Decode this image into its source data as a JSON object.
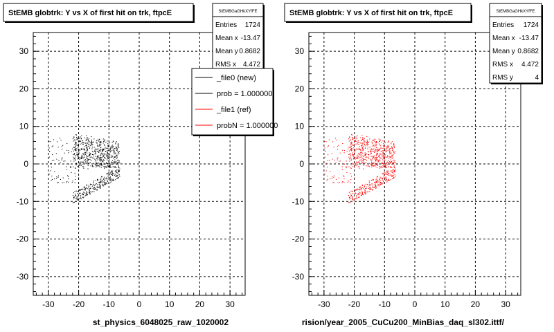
{
  "colors": {
    "new": "#000000",
    "ref": "#ff0000",
    "frame": "#000000",
    "grid": "#000000",
    "background": "#ffffff"
  },
  "chart_data": [
    {
      "type": "scatter",
      "title": "StEMB globtrk: Y vs X of first hit on trk, ftpcE",
      "xlabel": "st_physics_6048025_raw_1020002",
      "ylabel": "",
      "xlim": [
        -35,
        35
      ],
      "ylim": [
        -35,
        35
      ],
      "xticks": [
        -30,
        -20,
        -10,
        0,
        10,
        20,
        30
      ],
      "yticks": [
        -30,
        -20,
        -10,
        0,
        10,
        20,
        30
      ],
      "grid": true,
      "color": "#000000",
      "stats": {
        "name": "StEMBGaGHkXYfFE",
        "rows": [
          {
            "label": "Entries",
            "value": "1724"
          },
          {
            "label": "Mean x",
            "value": "-13.47"
          },
          {
            "label": "Mean y",
            "value": "0.8682"
          },
          {
            "label": "RMS x",
            "value": "4.472"
          }
        ]
      },
      "legend": {
        "placement": "top-right",
        "entries": [
          {
            "label": "_file0 (new)",
            "color": "#000000"
          },
          {
            "label": "prob = 1.000000",
            "color": "#000000"
          },
          {
            "label": "_file1 (ref)",
            "color": "#ff0000"
          },
          {
            "label": "probN = 1.000000",
            "color": "#ff0000"
          }
        ]
      }
    },
    {
      "type": "scatter",
      "title": "StEMB globtrk: Y vs X of first hit on trk, ftpcE",
      "xlabel": "rision/year_2005_CuCu200_MinBias_daq_sl302.ittf/",
      "ylabel": "",
      "xlim": [
        -35,
        35
      ],
      "ylim": [
        -35,
        35
      ],
      "xticks": [
        -30,
        -20,
        -10,
        0,
        10,
        20,
        30
      ],
      "yticks": [
        -30,
        -20,
        -10,
        0,
        10,
        20,
        30
      ],
      "grid": true,
      "color": "#ff0000",
      "stats": {
        "name": "StEMBGaGHkXYfFE",
        "rows": [
          {
            "label": "Entries",
            "value": "1724"
          },
          {
            "label": "Mean x",
            "value": "-13.47"
          },
          {
            "label": "Mean y",
            "value": "0.8682"
          },
          {
            "label": "RMS x",
            "value": "4.472"
          },
          {
            "label": "RMS y",
            "value": "4"
          }
        ]
      }
    }
  ],
  "scatter_shape": {
    "x_range": [
      -22,
      -6.5
    ],
    "upper_band_y": [
      -1,
      6
    ],
    "lower_band_y": [
      -11,
      -2
    ],
    "tail_x": [
      -30,
      -20
    ],
    "point_count": 1724
  }
}
